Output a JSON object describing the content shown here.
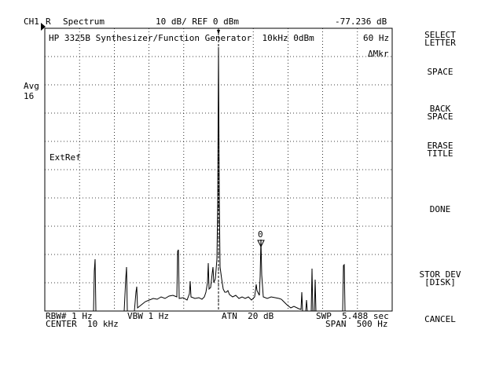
{
  "header": {
    "channel_label": "CH1",
    "input_label": "R",
    "mode_label": "Spectrum",
    "scale_label": "10 dB/ REF 0 dBm",
    "marker_readout": "-77.236 dB"
  },
  "trace": {
    "title": "HP 3325B Synthesizer/Function Generator  10kHz 0dBm",
    "marker_freq": "60 Hz",
    "delta_marker_label": "ΔMkr",
    "ext_ref_label": "ExtRef",
    "marker_symbol_label": "0"
  },
  "left_panel": {
    "avg_label": "Avg",
    "avg_count": "16"
  },
  "footer": {
    "rbw": "RBW# 1 Hz",
    "vbw": "VBW 1 Hz",
    "atn": "ATN  20 dB",
    "swp": "SWP  5.488 sec",
    "center": "CENTER  10 kHz",
    "span": "SPAN  500 Hz"
  },
  "softkeys": [
    {
      "label": "SELECT\nLETTER"
    },
    {
      "label": "SPACE"
    },
    {
      "label": "BACK\nSPACE"
    },
    {
      "label": "ERASE\nTITLE"
    },
    {
      "label": "DONE"
    },
    {
      "label": "STOR DEV\n[DISK]"
    },
    {
      "label": "CANCEL"
    }
  ],
  "colors": {
    "foreground": "#000000",
    "background": "#ffffff",
    "grid": "#000000"
  }
}
